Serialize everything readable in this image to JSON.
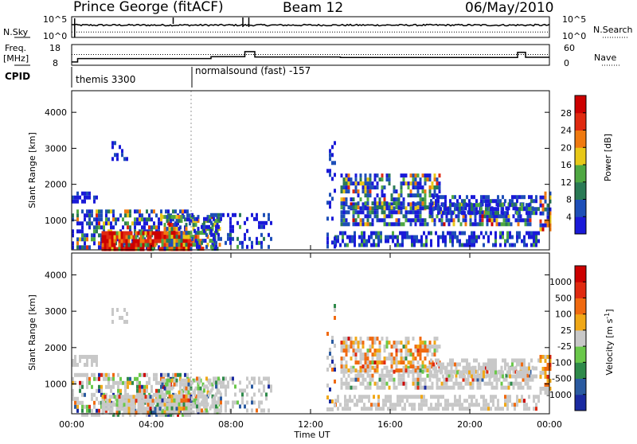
{
  "header": {
    "site": "Prince George (fitACF)",
    "beam": "Beam 12",
    "date": "06/May/2010"
  },
  "sky_panel": {
    "left_label": "N.Sky",
    "right_label": "N.Search",
    "left_ticks": [
      "10^5",
      "10^0"
    ],
    "right_ticks": [
      "10^5",
      "10^0"
    ]
  },
  "freq_panel": {
    "left_label_1": "Freq.",
    "left_label_2": "[MHz]",
    "right_label": "Nave",
    "left_ticks": [
      "18",
      "8"
    ],
    "right_ticks": [
      "60",
      "0"
    ]
  },
  "cpid_panel": {
    "label": "CPID",
    "segments": [
      "themis 3300",
      "normalsound (fast) -157"
    ]
  },
  "x_axis": {
    "label": "Time UT",
    "ticks": [
      "00:00",
      "04:00",
      "08:00",
      "12:00",
      "16:00",
      "20:00",
      "00:00"
    ]
  },
  "chart_data": [
    {
      "type": "heatmap",
      "title": "Power",
      "ylabel": "Slant Range [km]",
      "yticks": [
        "1000",
        "2000",
        "3000",
        "4000"
      ],
      "ylim": [
        180,
        4600
      ],
      "xlim_hours": [
        0,
        24
      ],
      "colorbar": {
        "label": "Power [dB]",
        "ticks": [
          "4",
          "8",
          "12",
          "16",
          "20",
          "24",
          "28"
        ],
        "colors": [
          "#1a1ad8",
          "#1e4fb8",
          "#2a7a55",
          "#4fa842",
          "#e8c818",
          "#f07a10",
          "#e02a10",
          "#cc0000"
        ]
      }
    },
    {
      "type": "heatmap",
      "title": "Velocity",
      "ylabel": "Slant Range [km]",
      "yticks": [
        "1000",
        "2000",
        "3000",
        "4000"
      ],
      "ylim": [
        180,
        4600
      ],
      "xlim_hours": [
        0,
        24
      ],
      "colorbar": {
        "label": "Velocity [m s^-1]",
        "ticks": [
          "1000",
          "500",
          "100",
          "25",
          "-25",
          "-100",
          "-500",
          "-1000"
        ],
        "colors": [
          "#1a2aa0",
          "#2a5aa0",
          "#2e8a4a",
          "#6ac84a",
          "#c8c8c8",
          "#f0a818",
          "#f06a10",
          "#e02a10",
          "#cc0000"
        ]
      }
    }
  ]
}
